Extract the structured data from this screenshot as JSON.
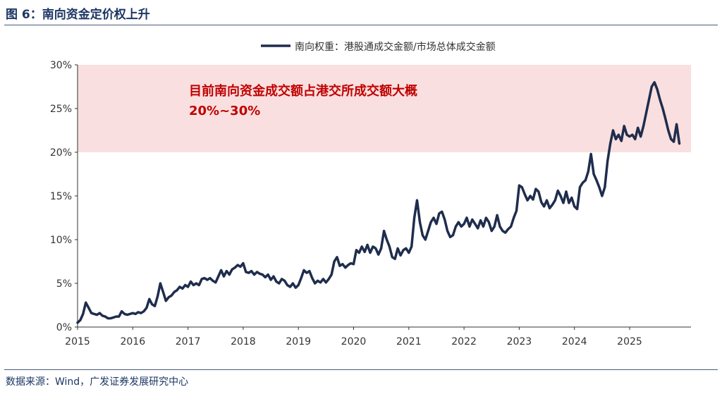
{
  "figure": {
    "title": "图 6：南向资金定价权上升",
    "source": "数据来源：Wind，广发证券发展研究中心"
  },
  "chart_data": {
    "type": "line",
    "title": "图 6：南向资金定价权上升",
    "xlabel": "",
    "ylabel": "",
    "ylim": [
      0,
      30
    ],
    "xlim": [
      2015,
      2025.9
    ],
    "yticks": [
      0,
      5,
      10,
      15,
      20,
      25,
      30
    ],
    "ytick_labels": [
      "0%",
      "5%",
      "10%",
      "15%",
      "20%",
      "25%",
      "30%"
    ],
    "xticks": [
      2015,
      2016,
      2017,
      2018,
      2019,
      2020,
      2021,
      2022,
      2023,
      2024,
      2025
    ],
    "xtick_labels": [
      "2015",
      "2016",
      "2017",
      "2018",
      "2019",
      "2020",
      "2021",
      "2022",
      "2023",
      "2024",
      "2025"
    ],
    "grid": false,
    "legend": {
      "position": "top-right",
      "entries": [
        "南向权重：港股通成交金额/市场总体成交金额"
      ]
    },
    "band": {
      "y_from": 20,
      "y_to": 30,
      "color": "#f9dfdf"
    },
    "annotation": {
      "line1": "目前南向资金成交额占港交所成交额大概",
      "line2": "20%~30%",
      "color": "#c00000"
    },
    "series": [
      {
        "name": "南向权重：港股通成交金额/市场总体成交金额",
        "color": "#1f2d4d",
        "x": [
          2015.0,
          2015.05,
          2015.1,
          2015.15,
          2015.2,
          2015.25,
          2015.3,
          2015.35,
          2015.4,
          2015.45,
          2015.5,
          2015.55,
          2015.6,
          2015.65,
          2015.7,
          2015.75,
          2015.8,
          2015.85,
          2015.9,
          2015.95,
          2016.0,
          2016.05,
          2016.1,
          2016.15,
          2016.2,
          2016.25,
          2016.3,
          2016.35,
          2016.4,
          2016.45,
          2016.5,
          2016.55,
          2016.6,
          2016.65,
          2016.7,
          2016.75,
          2016.8,
          2016.85,
          2016.9,
          2016.95,
          2017.0,
          2017.05,
          2017.1,
          2017.15,
          2017.2,
          2017.25,
          2017.3,
          2017.35,
          2017.4,
          2017.45,
          2017.5,
          2017.55,
          2017.6,
          2017.65,
          2017.7,
          2017.75,
          2017.8,
          2017.85,
          2017.9,
          2017.95,
          2018.0,
          2018.05,
          2018.1,
          2018.15,
          2018.2,
          2018.25,
          2018.3,
          2018.35,
          2018.4,
          2018.45,
          2018.5,
          2018.55,
          2018.6,
          2018.65,
          2018.7,
          2018.75,
          2018.8,
          2018.85,
          2018.9,
          2018.95,
          2019.0,
          2019.05,
          2019.1,
          2019.15,
          2019.2,
          2019.25,
          2019.3,
          2019.35,
          2019.4,
          2019.45,
          2019.5,
          2019.55,
          2019.6,
          2019.65,
          2019.7,
          2019.75,
          2019.8,
          2019.85,
          2019.9,
          2019.95,
          2020.0,
          2020.05,
          2020.1,
          2020.15,
          2020.2,
          2020.25,
          2020.3,
          2020.35,
          2020.4,
          2020.45,
          2020.5,
          2020.55,
          2020.6,
          2020.65,
          2020.7,
          2020.75,
          2020.8,
          2020.85,
          2020.9,
          2020.95,
          2021.0,
          2021.05,
          2021.1,
          2021.15,
          2021.2,
          2021.25,
          2021.3,
          2021.35,
          2021.4,
          2021.45,
          2021.5,
          2021.55,
          2021.6,
          2021.65,
          2021.7,
          2021.75,
          2021.8,
          2021.85,
          2021.9,
          2021.95,
          2022.0,
          2022.05,
          2022.1,
          2022.15,
          2022.2,
          2022.25,
          2022.3,
          2022.35,
          2022.4,
          2022.45,
          2022.5,
          2022.55,
          2022.6,
          2022.65,
          2022.7,
          2022.75,
          2022.8,
          2022.85,
          2022.9,
          2022.95,
          2023.0,
          2023.05,
          2023.1,
          2023.15,
          2023.2,
          2023.25,
          2023.3,
          2023.35,
          2023.4,
          2023.45,
          2023.5,
          2023.55,
          2023.6,
          2023.65,
          2023.7,
          2023.75,
          2023.8,
          2023.85,
          2023.9,
          2023.95,
          2024.0,
          2024.05,
          2024.1,
          2024.15,
          2024.2,
          2024.25,
          2024.3,
          2024.35,
          2024.4,
          2024.45,
          2024.5,
          2024.55,
          2024.6,
          2024.65,
          2024.7,
          2024.75,
          2024.8,
          2024.85,
          2024.9,
          2024.95,
          2025.0,
          2025.05,
          2025.1,
          2025.15,
          2025.2,
          2025.25,
          2025.3,
          2025.35,
          2025.4,
          2025.45,
          2025.5,
          2025.55,
          2025.6,
          2025.65,
          2025.7,
          2025.75,
          2025.8,
          2025.85,
          2025.9
        ],
        "values": [
          0.5,
          0.8,
          1.5,
          2.8,
          2.2,
          1.6,
          1.5,
          1.4,
          1.6,
          1.3,
          1.2,
          1.0,
          1.0,
          1.1,
          1.2,
          1.2,
          1.8,
          1.5,
          1.4,
          1.5,
          1.6,
          1.5,
          1.7,
          1.6,
          1.8,
          2.2,
          3.2,
          2.6,
          2.4,
          3.5,
          5.0,
          4.0,
          3.0,
          3.4,
          3.6,
          4.0,
          4.2,
          4.6,
          4.4,
          4.8,
          4.6,
          5.2,
          4.8,
          5.0,
          4.8,
          5.5,
          5.6,
          5.4,
          5.6,
          5.3,
          5.1,
          5.8,
          6.5,
          5.8,
          6.4,
          6.0,
          6.6,
          6.8,
          7.1,
          6.9,
          7.3,
          6.3,
          6.2,
          6.4,
          6.0,
          6.3,
          6.1,
          6.0,
          5.7,
          6.0,
          5.4,
          5.8,
          5.2,
          5.0,
          5.5,
          5.3,
          4.8,
          4.6,
          5.0,
          4.5,
          4.8,
          5.6,
          6.5,
          6.2,
          6.4,
          5.6,
          5.0,
          5.3,
          5.1,
          5.5,
          5.1,
          5.5,
          6.0,
          7.5,
          8.0,
          7.0,
          7.2,
          6.8,
          7.1,
          7.3,
          7.2,
          8.8,
          8.5,
          9.2,
          8.6,
          9.4,
          8.5,
          9.2,
          9.0,
          8.3,
          9.0,
          11.0,
          10.0,
          9.2,
          8.0,
          7.8,
          9.0,
          8.2,
          8.8,
          9.0,
          8.5,
          9.2,
          12.5,
          14.5,
          12.0,
          10.5,
          10.0,
          11.0,
          12.0,
          12.5,
          11.8,
          13.0,
          13.2,
          12.3,
          11.0,
          10.3,
          10.5,
          11.5,
          12.0,
          11.5,
          11.8,
          12.5,
          11.5,
          12.3,
          11.8,
          11.3,
          12.2,
          11.5,
          12.5,
          12.0,
          11.0,
          11.5,
          12.8,
          11.5,
          11.0,
          10.8,
          11.2,
          11.5,
          12.5,
          13.3,
          16.2,
          16.0,
          15.2,
          14.5,
          15.0,
          14.6,
          15.8,
          15.5,
          14.3,
          13.8,
          14.5,
          13.6,
          14.0,
          14.5,
          15.6,
          15.0,
          14.2,
          15.5,
          14.2,
          14.8,
          13.8,
          13.5,
          16.0,
          16.5,
          16.8,
          17.8,
          19.8,
          17.5,
          16.8,
          16.0,
          15.0,
          16.0,
          19.0,
          21.0,
          22.5,
          21.5,
          22.0,
          21.3,
          23.0,
          22.0,
          21.8,
          22.0,
          21.5,
          22.8,
          21.8,
          23.0,
          24.5,
          26.0,
          27.5,
          28.0,
          27.2,
          26.0,
          25.0,
          23.8,
          22.5,
          21.5,
          21.2,
          23.2,
          21.0
        ]
      }
    ]
  }
}
